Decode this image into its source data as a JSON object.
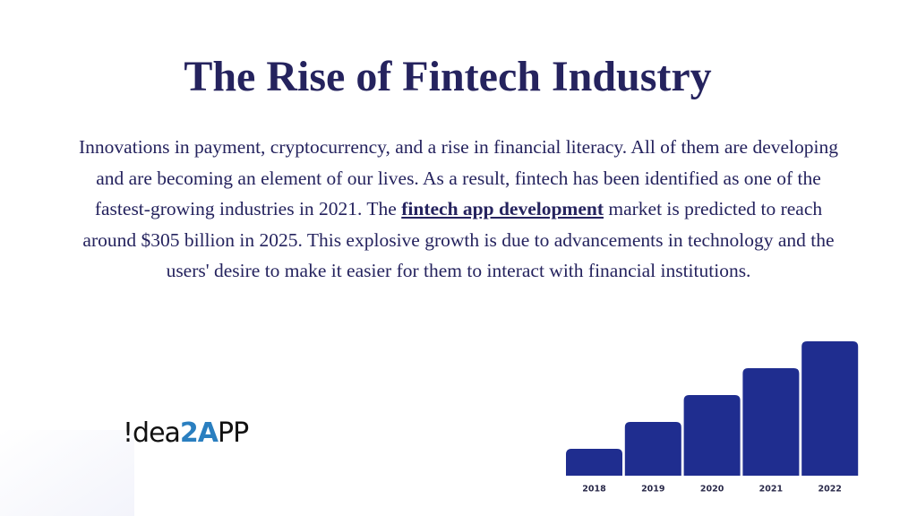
{
  "title": "The Rise of Fintech Industry",
  "body": {
    "before": "Innovations in payment, cryptocurrency, and a rise in financial literacy. All of them are developing and are becoming an element of our lives. As a result, fintech has been identified as one of the fastest-growing industries in 2021. The ",
    "link": "fintech app development",
    "after": " market is predicted to reach around $305 billion in 2025. This explosive growth is due to advancements in technology and the users' desire to make it easier for them to interact with financial institutions."
  },
  "logo": {
    "part1": "!dea",
    "part2": "2A",
    "part3": "PP"
  },
  "chart_data": {
    "type": "bar",
    "categories": [
      "2018",
      "2019",
      "2020",
      "2021",
      "2022"
    ],
    "values": [
      1,
      2,
      3,
      4,
      5
    ],
    "color": "#1f2d8f",
    "ylim": [
      0,
      5
    ]
  }
}
